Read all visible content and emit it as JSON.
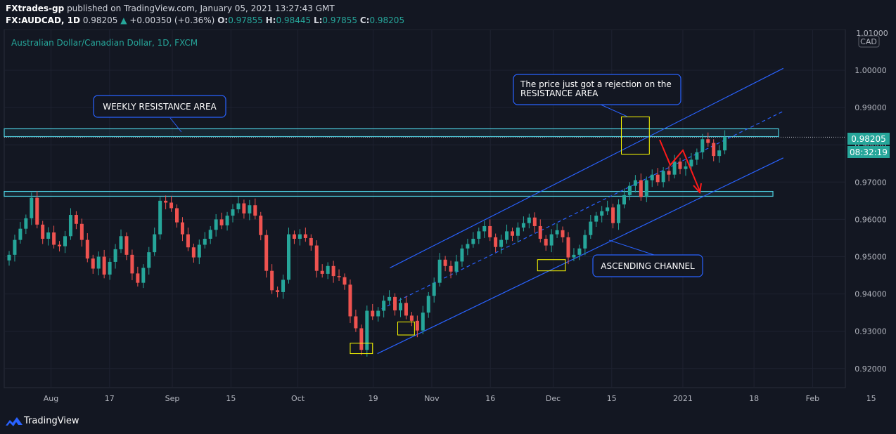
{
  "header": {
    "author": "FXtrades-gp",
    "published_text": "published on TradingView.com, January 05, 2021 13:27:43 GMT",
    "symbol": "FX:AUDCAD, 1D",
    "last_price": "0.98205",
    "change": "+0.00350 (+0.36%)",
    "o_label": "O:",
    "o_value": "0.97855",
    "h_label": "H:",
    "h_value": "0.98445",
    "l_label": "L:",
    "l_value": "0.97855",
    "c_label": "C:",
    "c_value": "0.98205"
  },
  "footer": {
    "brand": "TradingView"
  },
  "colors": {
    "background": "#131722",
    "up": "#26a69a",
    "down": "#ef5350",
    "zone": "#4dd0e1",
    "channel": "#2962ff",
    "marker": "#ffff00",
    "arrow": "#ff1a1a"
  },
  "chart_data": {
    "type": "candlestick",
    "title": "Australian Dollar/Canadian Dollar, 1D, FXCM",
    "currency_badge": "CAD",
    "y_axis": {
      "range": [
        0.9145,
        1.01
      ],
      "ticks": [
        "1.00000",
        "0.99000",
        "0.98000",
        "0.97000",
        "0.96000",
        "0.95000",
        "0.94000",
        "0.93000",
        "0.92000"
      ],
      "top_tick_partial": "1.01000"
    },
    "x_axis": {
      "start_date": "2020-07-24",
      "ticks": [
        {
          "label": "Aug",
          "date": "2020-08-03"
        },
        {
          "label": "17",
          "date": "2020-08-17"
        },
        {
          "label": "Sep",
          "date": "2020-09-01"
        },
        {
          "label": "15",
          "date": "2020-09-15"
        },
        {
          "label": "Oct",
          "date": "2020-10-01"
        },
        {
          "label": "19",
          "date": "2020-10-19"
        },
        {
          "label": "Nov",
          "date": "2020-11-02"
        },
        {
          "label": "16",
          "date": "2020-11-16"
        },
        {
          "label": "Dec",
          "date": "2020-12-01"
        },
        {
          "label": "15",
          "date": "2020-12-15"
        },
        {
          "label": "2021",
          "date": "2021-01-01"
        },
        {
          "label": "18",
          "date": "2021-01-18"
        },
        {
          "label": "Feb",
          "date": "2021-02-01"
        },
        {
          "label": "15",
          "date": "2021-02-15"
        }
      ]
    },
    "price_label": "0.98205",
    "countdown_label": "08:32:19",
    "closes": [
      0.9505,
      0.9545,
      0.9575,
      0.9603,
      0.9658,
      0.9586,
      0.9548,
      0.9565,
      0.9532,
      0.9528,
      0.9555,
      0.9612,
      0.9588,
      0.9545,
      0.9495,
      0.9468,
      0.95,
      0.9452,
      0.9486,
      0.952,
      0.9555,
      0.9505,
      0.9455,
      0.943,
      0.947,
      0.9512,
      0.956,
      0.965,
      0.9645,
      0.963,
      0.9592,
      0.956,
      0.9525,
      0.9498,
      0.9532,
      0.9548,
      0.9572,
      0.96,
      0.9584,
      0.961,
      0.9627,
      0.9643,
      0.9616,
      0.9638,
      0.961,
      0.9558,
      0.9462,
      0.941,
      0.9405,
      0.9438,
      0.956,
      0.9548,
      0.956,
      0.955,
      0.953,
      0.9462,
      0.9454,
      0.9475,
      0.9448,
      0.9445,
      0.9425,
      0.934,
      0.9308,
      0.925,
      0.9355,
      0.934,
      0.9355,
      0.9382,
      0.9392,
      0.9356,
      0.9376,
      0.9342,
      0.9328,
      0.9302,
      0.935,
      0.9395,
      0.943,
      0.9492,
      0.9475,
      0.946,
      0.9487,
      0.9522,
      0.9534,
      0.9548,
      0.9568,
      0.9582,
      0.9552,
      0.9526,
      0.9545,
      0.9568,
      0.9556,
      0.9578,
      0.959,
      0.9605,
      0.9582,
      0.9548,
      0.953,
      0.956,
      0.9571,
      0.9552,
      0.9498,
      0.9505,
      0.9522,
      0.9558,
      0.9594,
      0.961,
      0.9622,
      0.9632,
      0.959,
      0.964,
      0.9665,
      0.969,
      0.9705,
      0.966,
      0.9705,
      0.972,
      0.97,
      0.973,
      0.972,
      0.9755,
      0.9735,
      0.9742,
      0.976,
      0.978,
      0.9815,
      0.9805,
      0.977,
      0.9785,
      0.9821
    ],
    "resistance_zones": [
      {
        "name": "weekly resistance",
        "top": 0.9843,
        "bottom": 0.9822
      },
      {
        "name": "support",
        "top": 0.9675,
        "bottom": 0.9662
      }
    ],
    "channel": {
      "upper": [
        {
          "date": "2020-10-23",
          "price": 0.947
        },
        {
          "date": "2021-01-25",
          "price": 1.0005
        }
      ],
      "mid": [
        {
          "date": "2020-10-21",
          "price": 0.936
        },
        {
          "date": "2021-01-25",
          "price": 0.989
        }
      ],
      "lower": [
        {
          "date": "2020-10-20",
          "price": 0.924
        },
        {
          "date": "2021-01-25",
          "price": 0.9765
        }
      ]
    },
    "annotations": [
      {
        "text": "WEEKLY RESISTANCE AREA"
      },
      {
        "text": "The price just got a rejection on the RESISTANCE AREA",
        "line1": "The price just got a rejection on the",
        "line2": "RESISTANCE AREA"
      },
      {
        "text": "ASCENDING CHANNEL"
      }
    ]
  }
}
